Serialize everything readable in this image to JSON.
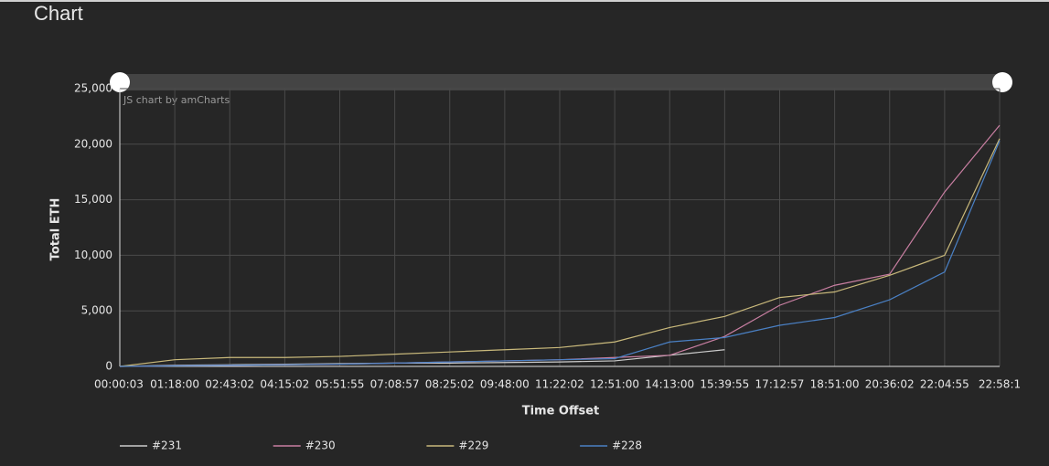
{
  "header": {
    "title": "Chart"
  },
  "chart_data": {
    "type": "line",
    "credit": "JS chart by amCharts",
    "x_label": "Time Offset",
    "y_label": "Total ETH",
    "categories": [
      "00:00:03",
      "01:18:00",
      "02:43:02",
      "04:15:02",
      "05:51:55",
      "07:08:57",
      "08:25:02",
      "09:48:00",
      "11:22:02",
      "12:51:00",
      "14:13:00",
      "15:39:55",
      "17:12:57",
      "18:51:00",
      "20:36:02",
      "22:04:55",
      "22:58:1"
    ],
    "series": [
      {
        "name": "#231",
        "color": "#cccccc",
        "values": [
          0,
          100,
          150,
          200,
          250,
          300,
          300,
          350,
          400,
          500,
          1000,
          1500,
          null,
          null,
          null,
          null,
          null
        ]
      },
      {
        "name": "#230",
        "color": "#c97fa2",
        "values": [
          0,
          50,
          100,
          150,
          200,
          300,
          400,
          500,
          600,
          800,
          1000,
          2700,
          5500,
          7300,
          8300,
          15700,
          21700
        ]
      },
      {
        "name": "#229",
        "color": "#c9b97b",
        "values": [
          0,
          600,
          800,
          800,
          900,
          1100,
          1300,
          1500,
          1700,
          2200,
          3500,
          4500,
          6200,
          6700,
          8200,
          10000,
          20500
        ]
      },
      {
        "name": "#228",
        "color": "#4a80c4",
        "values": [
          0,
          50,
          100,
          150,
          200,
          300,
          400,
          500,
          600,
          700,
          2200,
          2600,
          3700,
          4400,
          6000,
          8500,
          20300
        ]
      }
    ],
    "ylim": [
      0,
      25000
    ],
    "yticks": [
      0,
      {
        "value": 5000,
        "label": "5,000"
      },
      {
        "value": 10000,
        "label": "10,000"
      },
      {
        "value": 15000,
        "label": "15,000"
      },
      {
        "value": 20000,
        "label": "20,000"
      },
      {
        "value": 25000,
        "label": "25,000"
      }
    ],
    "grid": true,
    "legend": "bottom"
  }
}
